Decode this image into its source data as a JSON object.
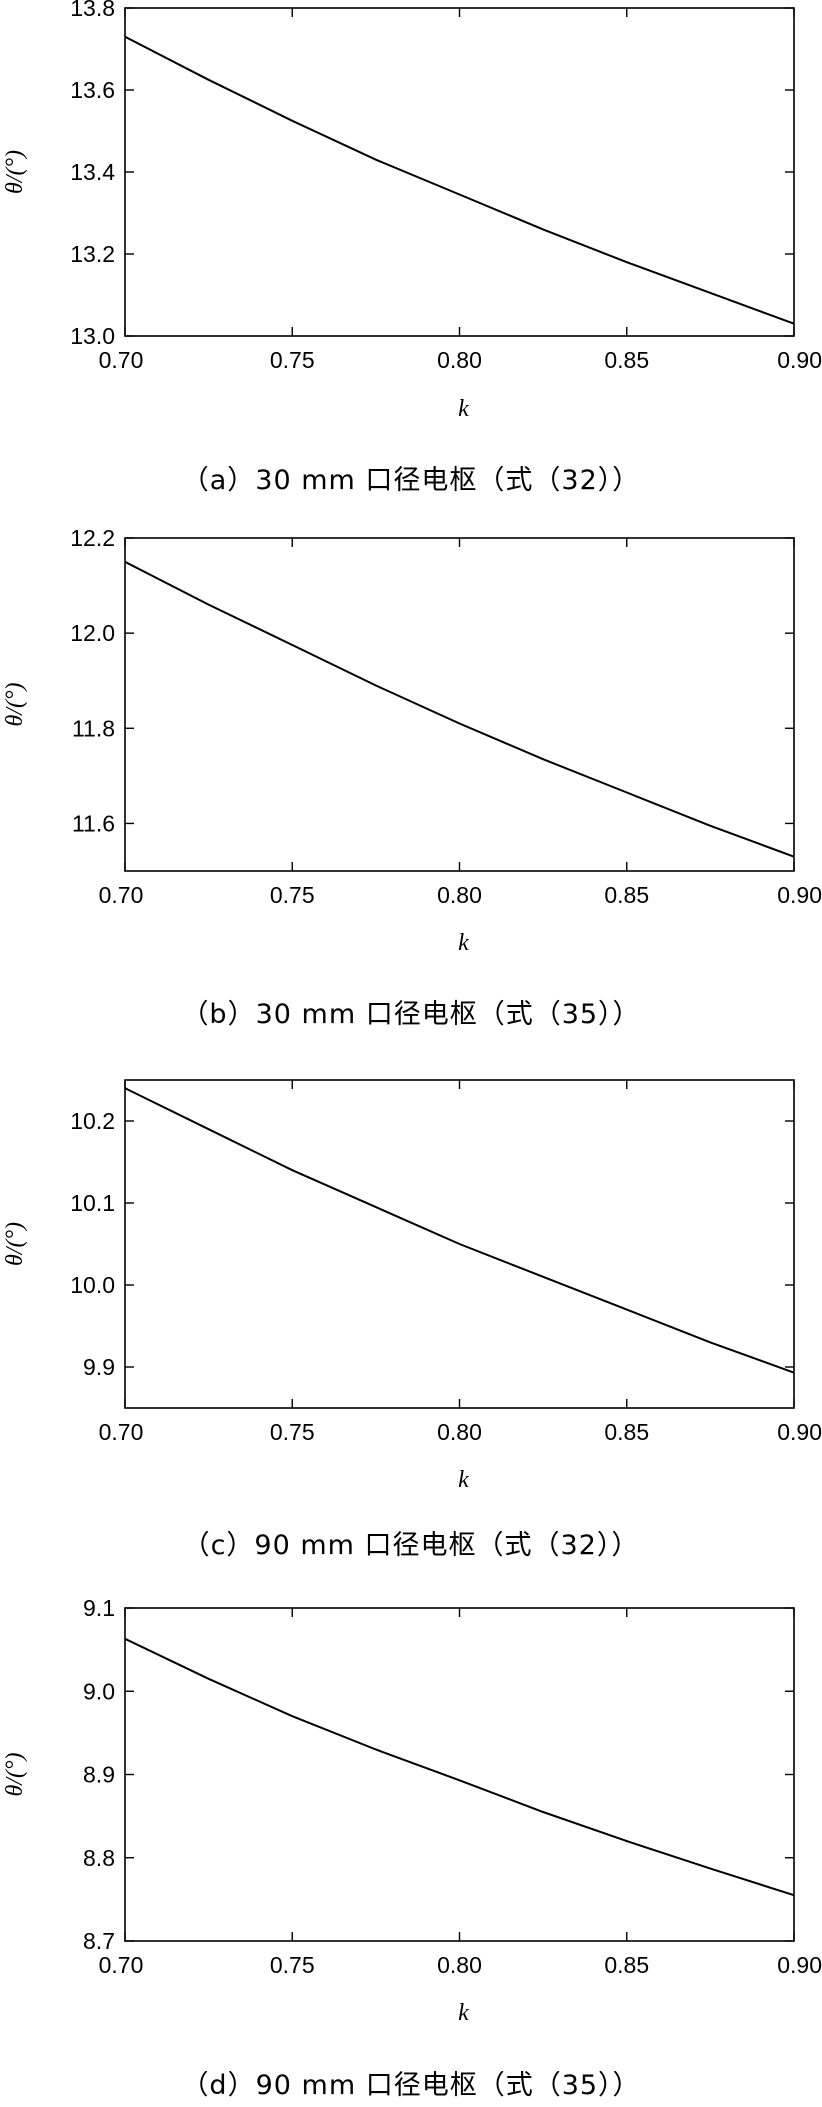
{
  "chart_data": [
    {
      "type": "line",
      "caption": "（a）30 mm 口径电枢（式（32））",
      "xlabel": "k",
      "ylabel": "θ/(°)",
      "xlim": [
        0.7,
        0.9
      ],
      "ylim": [
        13.0,
        13.8
      ],
      "xticks": [
        "0.70",
        "0.75",
        "0.80",
        "0.85",
        "0.90"
      ],
      "yticks": [
        "13.0",
        "13.2",
        "13.4",
        "13.6",
        "13.8"
      ],
      "grid": false,
      "x": [
        0.7,
        0.725,
        0.75,
        0.775,
        0.8,
        0.825,
        0.85,
        0.875,
        0.9
      ],
      "y": [
        13.73,
        13.625,
        13.525,
        13.43,
        13.345,
        13.26,
        13.18,
        13.105,
        13.03
      ]
    },
    {
      "type": "line",
      "caption": "（b）30 mm 口径电枢（式（35））",
      "xlabel": "k",
      "ylabel": "θ/(°)",
      "xlim": [
        0.7,
        0.9
      ],
      "ylim": [
        11.5,
        12.2
      ],
      "xticks": [
        "0.70",
        "0.75",
        "0.80",
        "0.85",
        "0.90"
      ],
      "yticks": [
        "11.6",
        "11.8",
        "12.0",
        "12.2"
      ],
      "grid": false,
      "x": [
        0.7,
        0.725,
        0.75,
        0.775,
        0.8,
        0.825,
        0.85,
        0.875,
        0.9
      ],
      "y": [
        12.15,
        12.06,
        11.975,
        11.89,
        11.81,
        11.735,
        11.665,
        11.595,
        11.53
      ]
    },
    {
      "type": "line",
      "caption": "（c）90 mm 口径电枢（式（32））",
      "xlabel": "k",
      "ylabel": "θ/(°)",
      "xlim": [
        0.7,
        0.9
      ],
      "ylim": [
        9.85,
        10.25
      ],
      "xticks": [
        "0.70",
        "0.75",
        "0.80",
        "0.85",
        "0.90"
      ],
      "yticks": [
        "9.9",
        "10.0",
        "10.1",
        "10.2"
      ],
      "grid": false,
      "x": [
        0.7,
        0.725,
        0.75,
        0.775,
        0.8,
        0.825,
        0.85,
        0.875,
        0.9
      ],
      "y": [
        10.24,
        10.19,
        10.14,
        10.095,
        10.05,
        10.01,
        9.97,
        9.93,
        9.893
      ]
    },
    {
      "type": "line",
      "caption": "（d）90 mm 口径电枢（式（35））",
      "xlabel": "k",
      "ylabel": "θ/(°)",
      "xlim": [
        0.7,
        0.9
      ],
      "ylim": [
        8.7,
        9.1
      ],
      "xticks": [
        "0.70",
        "0.75",
        "0.80",
        "0.85",
        "0.90"
      ],
      "yticks": [
        "8.7",
        "8.8",
        "8.9",
        "9.0",
        "9.1"
      ],
      "grid": false,
      "x": [
        0.7,
        0.725,
        0.75,
        0.775,
        0.8,
        0.825,
        0.85,
        0.875,
        0.9
      ],
      "y": [
        9.063,
        9.015,
        8.97,
        8.93,
        8.893,
        8.855,
        8.82,
        8.787,
        8.755
      ]
    }
  ]
}
